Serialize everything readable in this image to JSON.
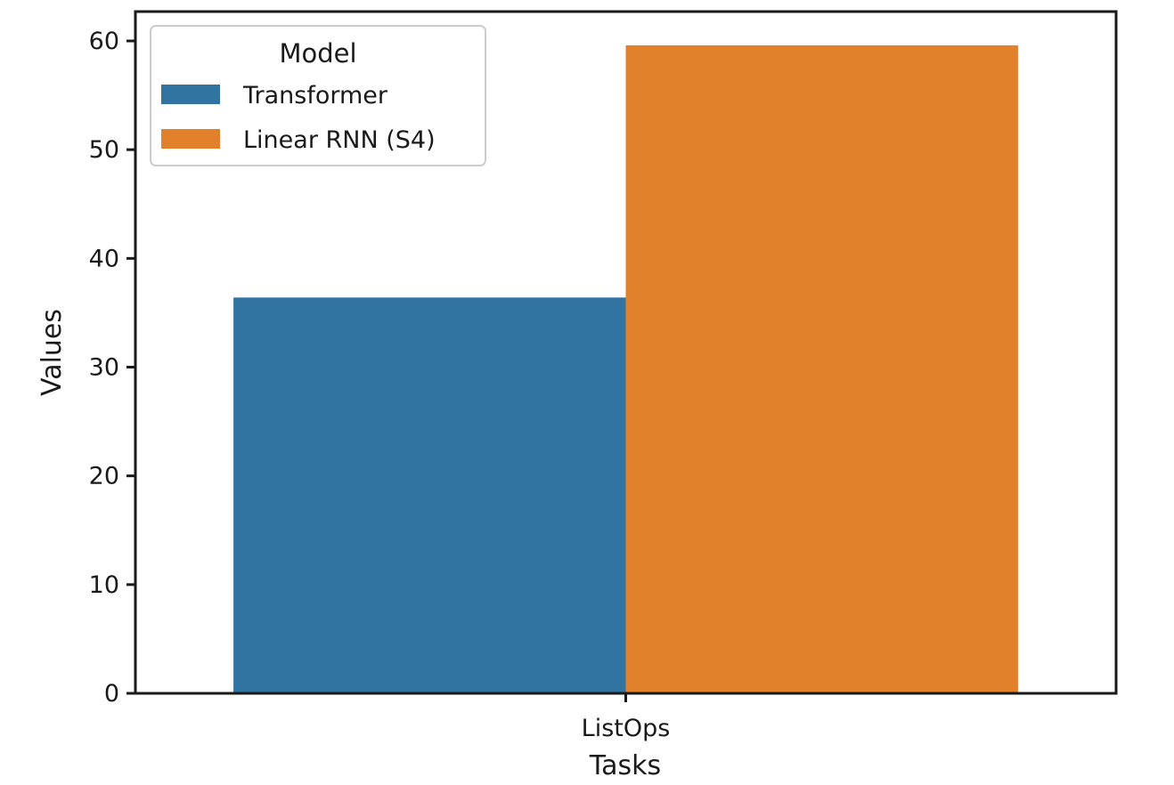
{
  "chart_data": {
    "type": "bar",
    "categories": [
      "ListOps"
    ],
    "series": [
      {
        "name": "Transformer",
        "values": [
          36.4
        ],
        "color": "#3274a1"
      },
      {
        "name": "Linear RNN (S4)",
        "values": [
          59.6
        ],
        "color": "#e1812c"
      }
    ],
    "xlabel": "Tasks",
    "ylabel": "Values",
    "ylim": [
      0,
      62.7
    ],
    "yticks": [
      0,
      10,
      20,
      30,
      40,
      50,
      60
    ],
    "legend": {
      "title": "Model",
      "placement": "top-left"
    },
    "grid": false
  }
}
